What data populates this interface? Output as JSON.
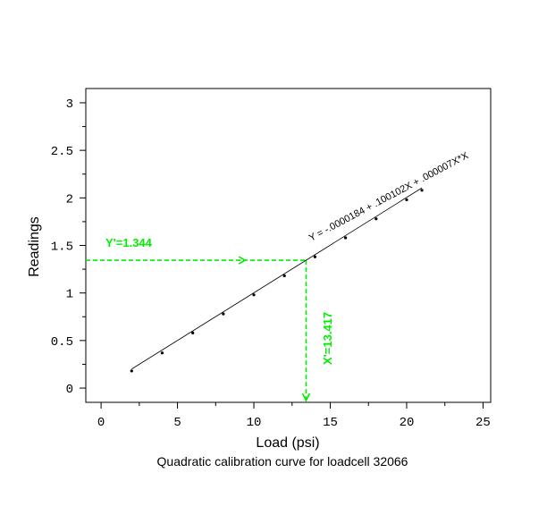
{
  "chart_data": {
    "type": "scatter",
    "title": "",
    "caption": "Quadratic calibration curve for loadcell 32066",
    "xlabel": "Load (psi)",
    "ylabel": "Readings",
    "xlim": [
      -1,
      25.5
    ],
    "ylim": [
      -0.15,
      3.15
    ],
    "x_ticks": [
      0,
      5,
      10,
      15,
      20,
      25
    ],
    "x_tick_labels": [
      "0",
      "5",
      "10",
      "15",
      "20",
      "25"
    ],
    "y_ticks": [
      0,
      0.5,
      1,
      1.5,
      2,
      2.5,
      3
    ],
    "y_tick_labels": [
      "0",
      "0.5",
      "1",
      "1.5",
      "2",
      "2.5",
      "3"
    ],
    "grid": false,
    "series": [
      {
        "points": [
          {
            "x": 2,
            "y": 0.18
          },
          {
            "x": 4,
            "y": 0.37
          },
          {
            "x": 6,
            "y": 0.58
          },
          {
            "x": 8,
            "y": 0.78
          },
          {
            "x": 10,
            "y": 0.98
          },
          {
            "x": 12,
            "y": 1.18
          },
          {
            "x": 14,
            "y": 1.38
          },
          {
            "x": 16,
            "y": 1.58
          },
          {
            "x": 18,
            "y": 1.78
          },
          {
            "x": 20,
            "y": 1.98
          },
          {
            "x": 21,
            "y": 2.08
          }
        ]
      }
    ],
    "fit": {
      "equation": "Y = -.0000184 + .100102X + .000007X*X",
      "coefficients": [
        -1.84e-05,
        0.100102,
        7e-06
      ],
      "x_range": [
        2,
        21
      ]
    },
    "annotations": {
      "color": "#00ee00",
      "y_value": 1.344,
      "x_value": 13.417,
      "y_label": "Y'=1.344",
      "x_label": "X'=13.417"
    }
  }
}
